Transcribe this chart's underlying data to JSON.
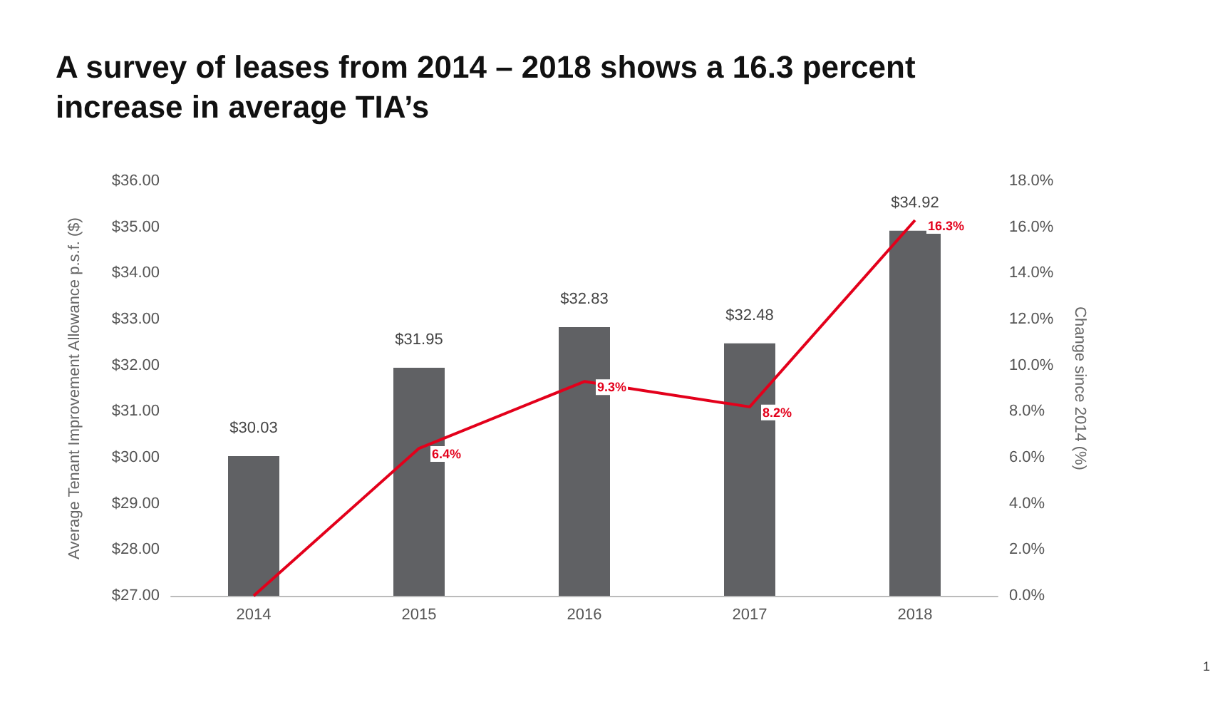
{
  "chart_data": {
    "type": "bar",
    "title": "A survey of leases from 2014 – 2018 shows a 16.3 percent increase in average TIA’s",
    "ylabel": "Average Tenant Improvement Allowance p.s.f. ($)",
    "y2label": "Change since 2014 (%)",
    "categories": [
      "2014",
      "2015",
      "2016",
      "2017",
      "2018"
    ],
    "series": [
      {
        "color": "#606164",
        "values": [
          30.03,
          31.95,
          32.83,
          32.48,
          34.92
        ],
        "value_labels": [
          "$30.03",
          "$31.95",
          "$32.83",
          "$32.48",
          "$34.92"
        ]
      },
      {
        "type": "line",
        "axis": "y2",
        "color": "#e3001b",
        "values": [
          0.0,
          6.4,
          9.3,
          8.2,
          16.3
        ],
        "value_labels": [
          null,
          "6.4%",
          "9.3%",
          "8.2%",
          "16.3%"
        ]
      }
    ],
    "ylim": [
      27,
      36
    ],
    "yticks": [
      {
        "value": 27,
        "label": "$27.00"
      },
      {
        "value": 28,
        "label": "$28.00"
      },
      {
        "value": 29,
        "label": "$29.00"
      },
      {
        "value": 30,
        "label": "$30.00"
      },
      {
        "value": 31,
        "label": "$31.00"
      },
      {
        "value": 32,
        "label": "$32.00"
      },
      {
        "value": 33,
        "label": "$33.00"
      },
      {
        "value": 34,
        "label": "$34.00"
      },
      {
        "value": 35,
        "label": "$35.00"
      },
      {
        "value": 36,
        "label": "$36.00"
      }
    ],
    "y2lim": [
      0,
      18
    ],
    "y2ticks": [
      {
        "value": 0,
        "label": "0.0%"
      },
      {
        "value": 2,
        "label": "2.0%"
      },
      {
        "value": 4,
        "label": "4.0%"
      },
      {
        "value": 6,
        "label": "6.0%"
      },
      {
        "value": 8,
        "label": "8.0%"
      },
      {
        "value": 10,
        "label": "10.0%"
      },
      {
        "value": 12,
        "label": "12.0%"
      },
      {
        "value": 14,
        "label": "14.0%"
      },
      {
        "value": 16,
        "label": "16.0%"
      },
      {
        "value": 18,
        "label": "18.0%"
      }
    ],
    "annotations": [
      "1"
    ],
    "grid": false,
    "marker": "none",
    "line_style": "solid"
  }
}
